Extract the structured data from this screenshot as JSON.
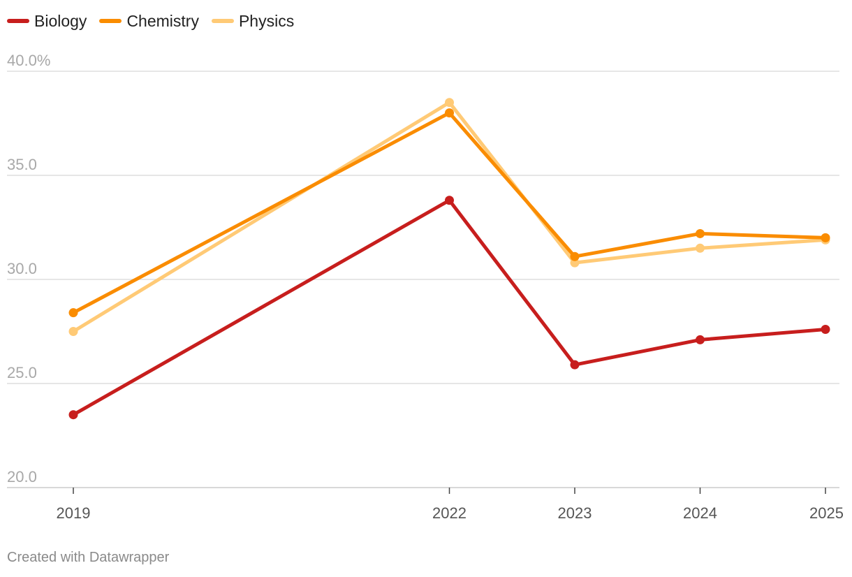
{
  "chart_data": {
    "type": "line",
    "title": "",
    "xlabel": "",
    "ylabel": "",
    "x": [
      "2019",
      "2022",
      "2023",
      "2024",
      "2025"
    ],
    "x_numeric": [
      2019,
      2022,
      2023,
      2024,
      2025
    ],
    "xlim": [
      2019,
      2025
    ],
    "ylim": [
      20,
      40
    ],
    "y_ticks": [
      20,
      25,
      30,
      35,
      40
    ],
    "y_tick_labels": [
      "20.0",
      "25.0",
      "30.0",
      "35.0",
      "40.0%"
    ],
    "grid": true,
    "legend_position": "top-left",
    "series": [
      {
        "name": "Biology",
        "color": "#c71e1d",
        "values": [
          23.5,
          33.8,
          25.9,
          27.1,
          27.6
        ]
      },
      {
        "name": "Chemistry",
        "color": "#fa8c00",
        "values": [
          28.4,
          38.0,
          31.1,
          32.2,
          32.0
        ]
      },
      {
        "name": "Physics",
        "color": "#ffca76",
        "values": [
          27.5,
          38.5,
          30.8,
          31.5,
          31.9
        ]
      }
    ],
    "source": "Created with Datawrapper"
  }
}
